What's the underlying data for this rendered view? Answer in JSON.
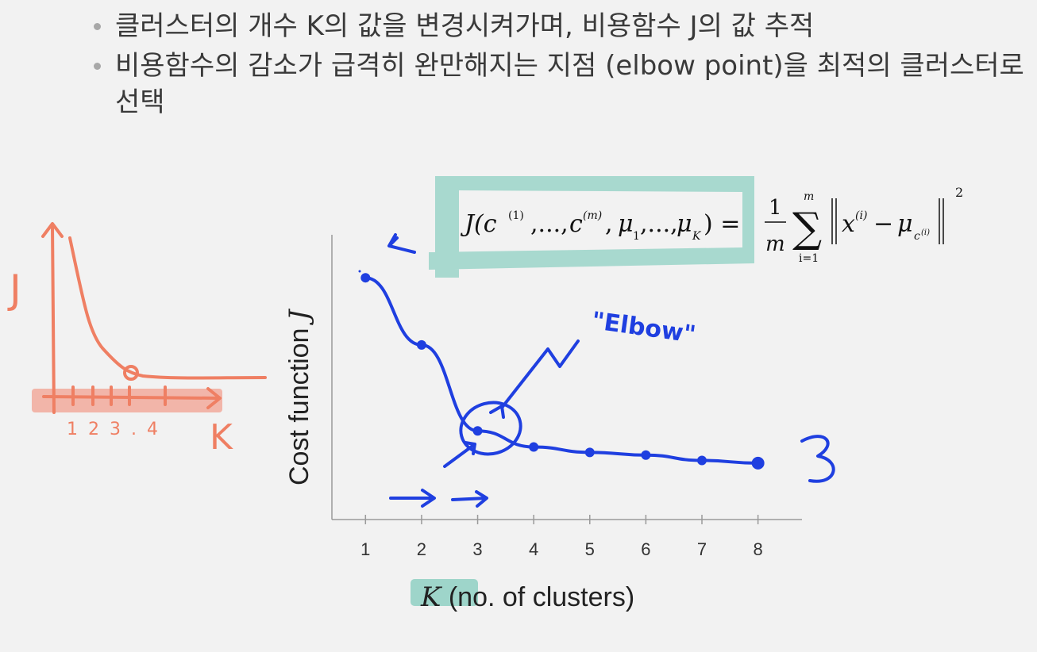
{
  "bullets": [
    "클러스터의 개수 K의 값을 변경시켜가며, 비용함수 J의 값 추적",
    "비용함수의 감소가 급격히 완만해지는 지점 (elbow point)을 최적의 클러스터로 선택"
  ],
  "formula": {
    "lhs": "J(c",
    "rhs_fraction": "1",
    "rhs_den": "m",
    "sum_top": "m",
    "sum_bottom": "i=1"
  },
  "chart_data": {
    "type": "line",
    "x": [
      1,
      2,
      3,
      4,
      5,
      6,
      7,
      8
    ],
    "series": [
      {
        "values": [
          9.0,
          6.5,
          3.3,
          2.7,
          2.5,
          2.4,
          2.2,
          2.1
        ]
      }
    ],
    "xlabel_var": "K",
    "xlabel_rest": " (no. of clusters)",
    "ylabel_text": "Cost function ",
    "ylabel_var": "J",
    "xlim": [
      0.5,
      8.5
    ],
    "ylim": [
      0,
      10
    ],
    "ticks": [
      "1",
      "2",
      "3",
      "4",
      "5",
      "6",
      "7",
      "8"
    ],
    "annotation": "\"Elbow\"",
    "colors": {
      "curve": "#1f3fe0",
      "axes": "#8a8a8a",
      "highlight": "#7fc4b7",
      "sketch": "#ef7f63"
    }
  },
  "sketch": {
    "y_label": "J",
    "x_label": "K",
    "tick_labels": "1 2 3 . 4"
  }
}
